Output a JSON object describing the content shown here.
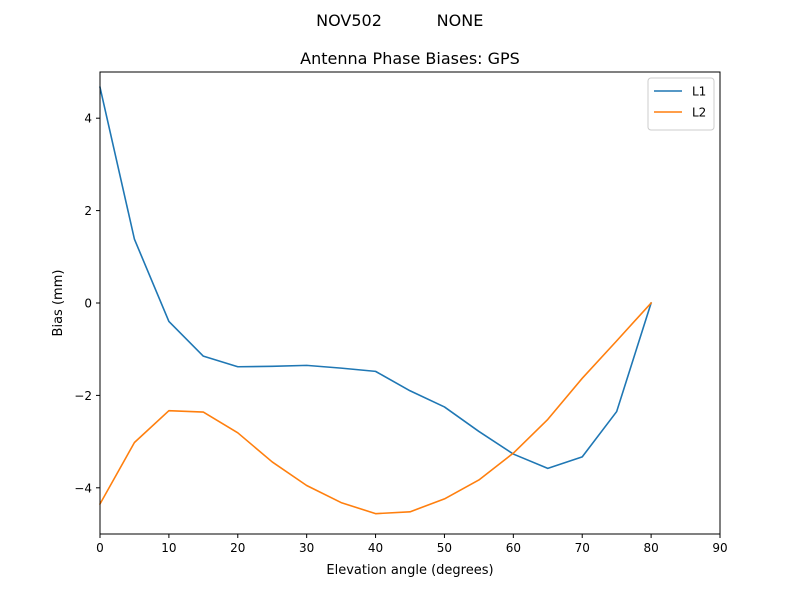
{
  "chart_data": {
    "type": "line",
    "suptitle_left": "NOV502",
    "suptitle_right": "NONE",
    "title": "Antenna Phase Biases: GPS",
    "xlabel": "Elevation angle (degrees)",
    "ylabel": "Bias (mm)",
    "xlim": [
      0,
      90
    ],
    "ylim": [
      -5,
      5
    ],
    "xticks": [
      0,
      10,
      20,
      30,
      40,
      50,
      60,
      70,
      80,
      90
    ],
    "yticks": [
      -4,
      -2,
      0,
      2,
      4
    ],
    "grid": false,
    "legend_position": "top-right",
    "x": [
      0,
      5,
      10,
      15,
      20,
      25,
      30,
      35,
      40,
      45,
      50,
      55,
      60,
      65,
      70,
      75,
      80
    ],
    "series": [
      {
        "name": "L1",
        "color": "#1f77b4",
        "values": [
          4.67,
          1.38,
          -0.4,
          -1.15,
          -1.38,
          -1.37,
          -1.35,
          -1.41,
          -1.48,
          -1.9,
          -2.25,
          -2.78,
          -3.27,
          -3.58,
          -3.33,
          -2.35,
          0.0
        ]
      },
      {
        "name": "L2",
        "color": "#ff7f0e",
        "values": [
          -4.35,
          -3.02,
          -2.33,
          -2.36,
          -2.81,
          -3.44,
          -3.95,
          -4.32,
          -4.56,
          -4.52,
          -4.24,
          -3.83,
          -3.25,
          -2.52,
          -1.63,
          -0.82,
          0.0
        ]
      }
    ]
  }
}
